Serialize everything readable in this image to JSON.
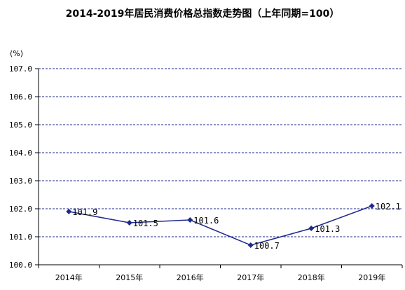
{
  "chart_data": {
    "type": "line",
    "title": "2014-2019年居民消费价格总指数走势图（上年同期=100）",
    "unit_label": "(%)",
    "categories": [
      "2014年",
      "2015年",
      "2016年",
      "2017年",
      "2018年",
      "2019年"
    ],
    "series": [
      {
        "values": [
          101.9,
          101.5,
          101.6,
          100.7,
          101.3,
          102.1
        ],
        "color": "#1f2a8c"
      }
    ],
    "data_labels": [
      "101.9",
      "101.5",
      "101.6",
      "100.7",
      "101.3",
      "102.1"
    ],
    "ylim": [
      100.0,
      107.0
    ],
    "yticks": [
      "100.0",
      "101.0",
      "102.0",
      "103.0",
      "104.0",
      "105.0",
      "106.0",
      "107.0"
    ],
    "grid": true,
    "grid_style": "dashed",
    "grid_color": "#1f2a8c",
    "legend": "none"
  }
}
